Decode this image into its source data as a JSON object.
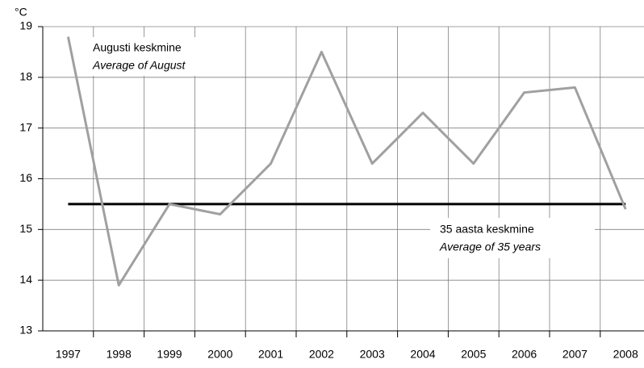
{
  "chart_data": {
    "type": "line",
    "y_label": "°C",
    "categories": [
      "1997",
      "1998",
      "1999",
      "2000",
      "2001",
      "2002",
      "2003",
      "2004",
      "2005",
      "2006",
      "2007",
      "2008"
    ],
    "series": [
      {
        "name": "Augusti keskmine",
        "name_en": "Average of August",
        "color": "#a0a0a0",
        "values": [
          18.8,
          13.9,
          15.5,
          15.3,
          16.3,
          18.5,
          16.3,
          17.3,
          16.3,
          17.7,
          17.8,
          15.4
        ]
      },
      {
        "name": "35 aasta keskmine",
        "name_en": "Average of 35 years",
        "color": "#000000",
        "values": [
          15.5,
          15.5,
          15.5,
          15.5,
          15.5,
          15.5,
          15.5,
          15.5,
          15.5,
          15.5,
          15.5,
          15.5
        ]
      }
    ],
    "ylim": [
      13,
      19
    ],
    "yticks": [
      13,
      14,
      15,
      16,
      17,
      18,
      19
    ],
    "grid": true
  }
}
